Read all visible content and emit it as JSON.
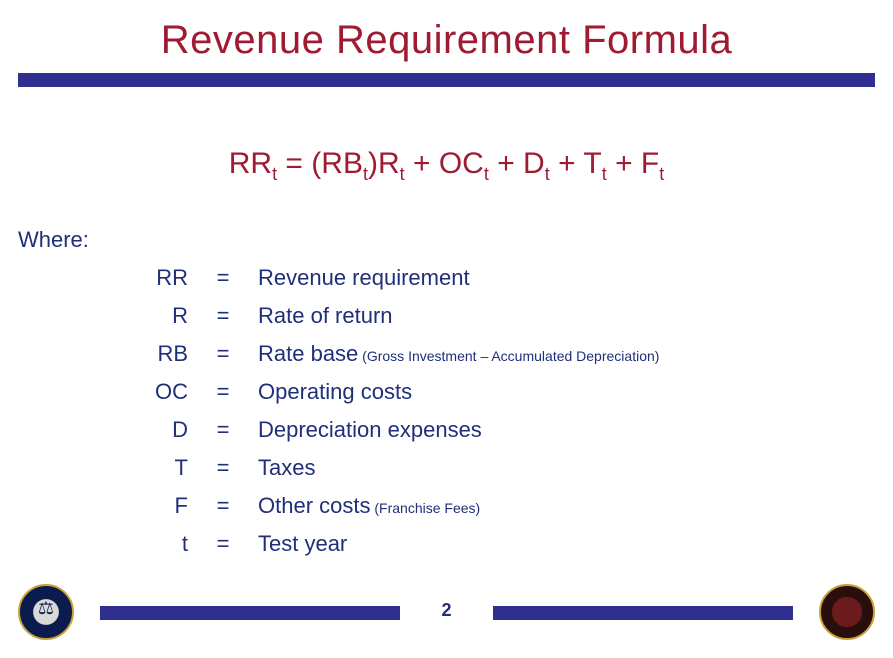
{
  "colors": {
    "title": "#9e1b32",
    "bar": "#2f2f8f",
    "body": "#1f2f7a",
    "background": "#ffffff"
  },
  "title": "Revenue Requirement Formula",
  "formula": {
    "parts": [
      {
        "text": "RR",
        "sub": "t"
      },
      {
        "text": " = (RB",
        "sub": "t"
      },
      {
        "text": ")R",
        "sub": "t"
      },
      {
        "text": " + OC",
        "sub": "t"
      },
      {
        "text": " + D",
        "sub": "t"
      },
      {
        "text": " + T",
        "sub": "t"
      },
      {
        "text": " + F",
        "sub": "t"
      }
    ]
  },
  "where_label": "Where:",
  "definitions": [
    {
      "sym": "RR",
      "desc": "Revenue requirement",
      "note": ""
    },
    {
      "sym": "R",
      "desc": "Rate of return",
      "note": ""
    },
    {
      "sym": "RB",
      "desc": "Rate base",
      "note": "(Gross Investment – Accumulated Depreciation)"
    },
    {
      "sym": "OC",
      "desc": "Operating costs",
      "note": ""
    },
    {
      "sym": "D",
      "desc": "Depreciation expenses",
      "note": ""
    },
    {
      "sym": "T",
      "desc": "Taxes",
      "note": ""
    },
    {
      "sym": "F",
      "desc": "Other costs",
      "note": "(Franchise Fees)"
    },
    {
      "sym": "t",
      "desc": "Test year",
      "note": ""
    }
  ],
  "eq_symbol": "=",
  "page_number": "2",
  "seals": {
    "left_alt": "regulatory-seal",
    "right_alt": "state-of-colorado-seal"
  }
}
